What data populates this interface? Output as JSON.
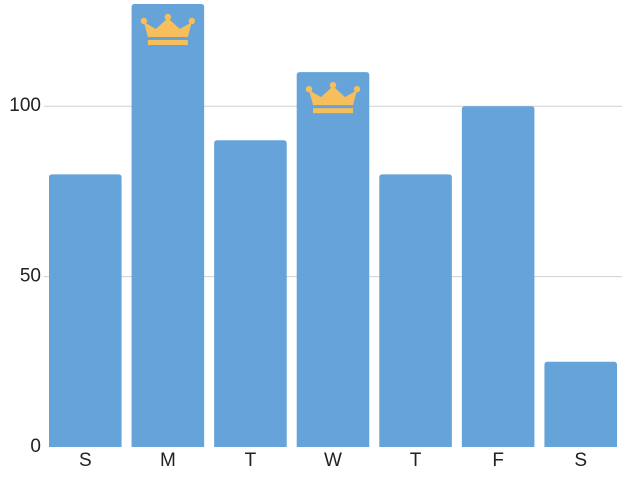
{
  "chart_data": {
    "type": "bar",
    "categories": [
      "S",
      "M",
      "T",
      "W",
      "T",
      "F",
      "S"
    ],
    "values": [
      80,
      130,
      90,
      110,
      80,
      100,
      25
    ],
    "highlighted": [
      false,
      true,
      false,
      true,
      false,
      false,
      false
    ],
    "highlight_icon": "crown-icon",
    "title": "",
    "xlabel": "",
    "ylabel": "",
    "ylim": [
      0,
      130
    ],
    "yticks": [
      0,
      50,
      100
    ],
    "grid": true,
    "legend": "none",
    "colors": {
      "bar": "#66a3d9",
      "crown": "#f7be5c",
      "grid": "#d0d0d0",
      "text": "#222222"
    }
  }
}
